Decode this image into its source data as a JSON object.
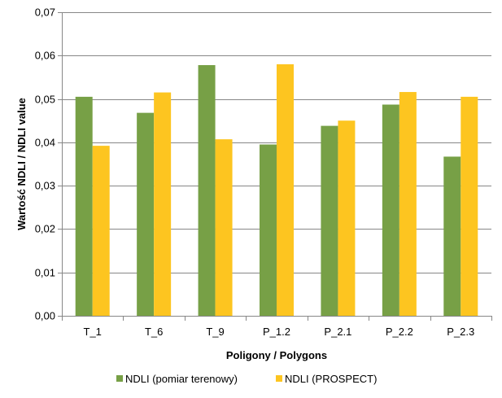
{
  "chart_data": {
    "type": "bar",
    "title": "",
    "xlabel": "Poligony / Polygons",
    "ylabel": "Wartość NDLI / NDLI value",
    "ylim": [
      0,
      0.07
    ],
    "yticks": [
      0.0,
      0.01,
      0.02,
      0.03,
      0.04,
      0.05,
      0.06,
      0.07
    ],
    "ytick_labels": [
      "0,00",
      "0,01",
      "0,02",
      "0,03",
      "0,04",
      "0,05",
      "0,06",
      "0,07"
    ],
    "categories": [
      "T_1",
      "T_6",
      "T_9",
      "P_1.2",
      "P_2.1",
      "P_2.2",
      "P_2.3"
    ],
    "grid": true,
    "legend_position": "bottom",
    "series": [
      {
        "name": "NDLI  (pomiar terenowy)",
        "color": "#77A046",
        "values": [
          0.0505,
          0.0468,
          0.0578,
          0.0395,
          0.0438,
          0.0487,
          0.0367
        ]
      },
      {
        "name": "NDLI  (PROSPECT)",
        "color": "#FDC520",
        "values": [
          0.0392,
          0.0515,
          0.0407,
          0.058,
          0.045,
          0.0516,
          0.0505
        ]
      }
    ]
  }
}
